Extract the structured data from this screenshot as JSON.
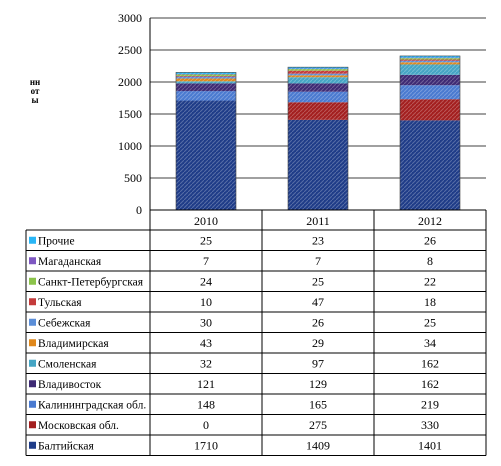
{
  "chart_data": {
    "type": "bar",
    "stacked": true,
    "title": "",
    "xlabel": "",
    "ylabel": "Тонны",
    "ylabel_visible": "нноты",
    "ylim": [
      0,
      3000
    ],
    "yticks": [
      0,
      500,
      1000,
      1500,
      2000,
      2500,
      3000
    ],
    "grid": true,
    "legend": "data-table",
    "categories": [
      "2010",
      "2011",
      "2012"
    ],
    "series": [
      {
        "name": "Балтийская",
        "color": "#1f3c88",
        "values": [
          1710,
          1409,
          1401
        ]
      },
      {
        "name": "Московская обл.",
        "color": "#a31f1f",
        "values": [
          0,
          275,
          330
        ]
      },
      {
        "name": "Калининградская обл.",
        "color": "#4a7ad0",
        "values": [
          148,
          165,
          219
        ]
      },
      {
        "name": "Владивосток",
        "color": "#3e2a74",
        "values": [
          121,
          129,
          162
        ]
      },
      {
        "name": "Смоленская",
        "color": "#45a5c4",
        "values": [
          32,
          97,
          162
        ]
      },
      {
        "name": "Владимирская",
        "color": "#e0881c",
        "values": [
          43,
          29,
          34
        ]
      },
      {
        "name": "Себежская",
        "color": "#5b8ed8",
        "values": [
          30,
          26,
          25
        ]
      },
      {
        "name": "Тульская",
        "color": "#c43b3b",
        "values": [
          10,
          47,
          18
        ]
      },
      {
        "name": "Санкт-Петербургская",
        "color": "#8bc34a",
        "values": [
          24,
          25,
          22
        ]
      },
      {
        "name": "Магаданская",
        "color": "#7e57c2",
        "values": [
          7,
          7,
          8
        ]
      },
      {
        "name": "Прочие",
        "color": "#29b6f6",
        "values": [
          25,
          23,
          26
        ]
      }
    ]
  }
}
